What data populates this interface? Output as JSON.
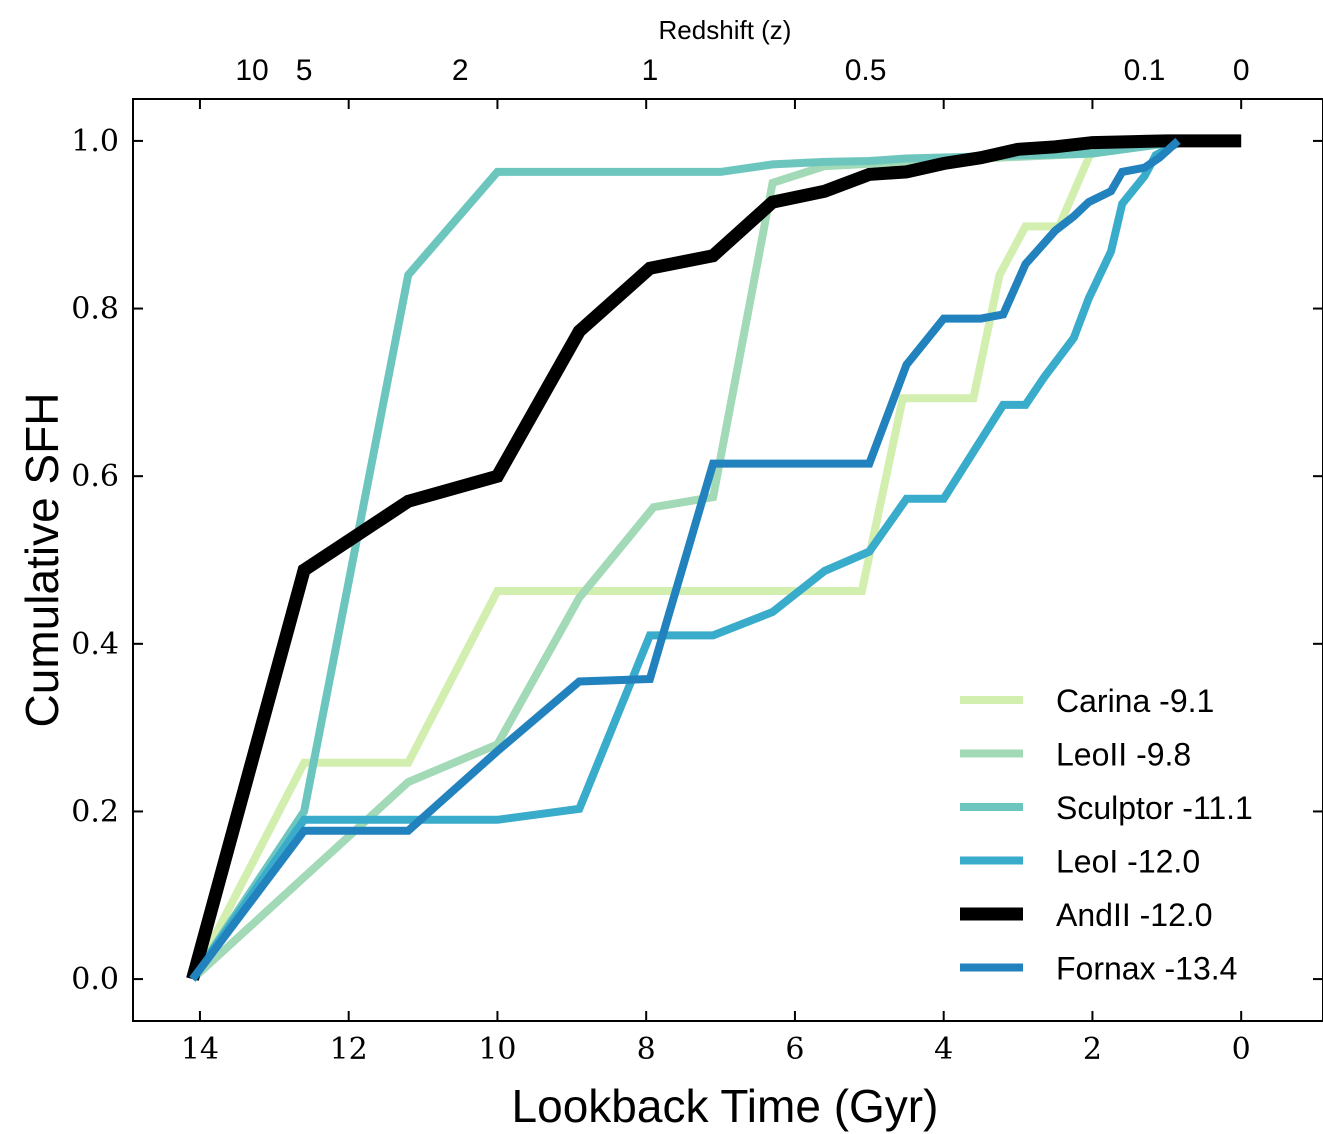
{
  "chart_data": {
    "type": "line",
    "title": "",
    "xlabel": "Lookback Time (Gyr)",
    "ylabel": "Cumulative SFH",
    "top_xlabel": "Redshift (z)",
    "xlim": [
      14.9,
      -1.1
    ],
    "ylim": [
      -0.05,
      1.05
    ],
    "x_ticks": [
      14,
      12,
      10,
      8,
      6,
      4,
      2,
      0
    ],
    "y_ticks": [
      "0.0",
      "0.2",
      "0.4",
      "0.6",
      "0.8",
      "1.0"
    ],
    "top_ticks": [
      {
        "label": "10",
        "x": 13.3
      },
      {
        "label": "5",
        "x": 12.6
      },
      {
        "label": "2",
        "x": 10.5
      },
      {
        "label": "1",
        "x": 7.95
      },
      {
        "label": "0.5",
        "x": 5.05
      },
      {
        "label": "0.1",
        "x": 1.3
      },
      {
        "label": "0",
        "x": 0
      }
    ],
    "grid": false,
    "legend_position": "bottom-right",
    "series": [
      {
        "name": "Carina -9.1",
        "color": "#d2efb0",
        "x": [
          14.1,
          12.6,
          11.2,
          10.0,
          5.1,
          4.55,
          3.6,
          3.25,
          2.9,
          2.45,
          2.05,
          1.95,
          0.75
        ],
        "y": [
          0.0,
          0.258,
          0.258,
          0.463,
          0.463,
          0.693,
          0.693,
          0.84,
          0.898,
          0.898,
          0.98,
          0.995,
          1.0
        ]
      },
      {
        "name": "LeoII -9.8",
        "color": "#a2d9b6",
        "x": [
          14.1,
          11.2,
          10.0,
          8.9,
          7.9,
          7.1,
          6.3,
          5.6,
          4.5,
          2.0,
          0.75
        ],
        "y": [
          0.0,
          0.235,
          0.28,
          0.455,
          0.563,
          0.575,
          0.95,
          0.97,
          0.975,
          0.985,
          1.0
        ]
      },
      {
        "name": "Sculptor -11.1",
        "color": "#6cc6be",
        "x": [
          14.1,
          12.6,
          11.2,
          10.0,
          7.0,
          6.3,
          5.6,
          5.0,
          4.5,
          2.0,
          0.75
        ],
        "y": [
          0.0,
          0.2,
          0.84,
          0.963,
          0.963,
          0.972,
          0.975,
          0.976,
          0.979,
          0.985,
          1.0
        ]
      },
      {
        "name": "LeoI -12.0",
        "color": "#3aaccb",
        "x": [
          14.1,
          12.6,
          10.0,
          8.9,
          7.95,
          7.1,
          6.3,
          5.6,
          5.0,
          4.5,
          4.0,
          3.2,
          2.9,
          2.65,
          2.25,
          2.05,
          1.75,
          1.6,
          1.3,
          1.15,
          0.8
        ],
        "y": [
          0.0,
          0.19,
          0.19,
          0.203,
          0.41,
          0.41,
          0.438,
          0.487,
          0.51,
          0.573,
          0.573,
          0.685,
          0.685,
          0.718,
          0.765,
          0.812,
          0.868,
          0.925,
          0.958,
          0.983,
          1.0
        ]
      },
      {
        "name": "AndII -12.0",
        "color": "#000000",
        "x": [
          14.1,
          12.6,
          11.2,
          10.0,
          8.9,
          7.95,
          7.1,
          6.3,
          5.6,
          5.0,
          4.5,
          4.0,
          3.5,
          3.0,
          2.5,
          2.0,
          1.5,
          1.0,
          0.0
        ],
        "y": [
          0.0,
          0.488,
          0.57,
          0.6,
          0.773,
          0.848,
          0.863,
          0.927,
          0.94,
          0.96,
          0.963,
          0.973,
          0.98,
          0.99,
          0.993,
          0.998,
          0.999,
          1.0,
          1.0
        ]
      },
      {
        "name": "Fornax -13.4",
        "color": "#2182bd",
        "x": [
          14.1,
          12.6,
          11.2,
          10.0,
          8.9,
          7.95,
          7.1,
          6.3,
          5.6,
          5.0,
          4.5,
          4.0,
          3.5,
          3.2,
          2.9,
          2.5,
          2.25,
          2.05,
          1.75,
          1.6,
          1.3,
          1.1,
          0.85
        ],
        "y": [
          0.0,
          0.177,
          0.177,
          0.272,
          0.355,
          0.358,
          0.615,
          0.615,
          0.615,
          0.615,
          0.733,
          0.788,
          0.788,
          0.793,
          0.853,
          0.893,
          0.91,
          0.927,
          0.94,
          0.963,
          0.968,
          0.98,
          1.0
        ]
      }
    ]
  }
}
